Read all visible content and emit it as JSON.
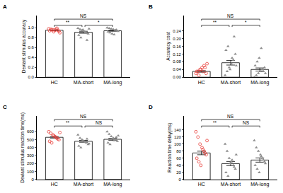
{
  "chart_data": [
    {
      "type": "bar",
      "panel": "A",
      "ylabel": "Deviant stimulus accuracy",
      "categories": [
        "HC",
        "MA-short",
        "MA-long"
      ],
      "values": [
        0.95,
        0.91,
        0.94
      ],
      "errors": [
        0.006,
        0.02,
        0.01
      ],
      "points": [
        [
          0.98,
          0.97,
          0.96,
          0.95,
          0.99,
          0.93,
          0.94,
          0.96,
          0.92,
          0.97,
          0.95,
          0.9
        ],
        [
          0.99,
          0.97,
          0.95,
          0.93,
          0.9,
          0.88,
          0.85,
          0.8,
          0.96,
          0.92,
          0.75,
          0.98
        ],
        [
          1.0,
          0.99,
          0.98,
          0.97,
          0.95,
          0.94,
          0.92,
          0.9,
          0.88,
          0.86,
          0.96,
          0.93
        ]
      ],
      "colors": [
        "#e8413c",
        "#8c8c8c",
        "#8c8c8c"
      ],
      "marker": [
        "circle-open",
        "triangle-up",
        "triangle-up"
      ],
      "ylim": [
        0,
        1.25
      ],
      "yticks": [
        {
          "value": 0,
          "label": "0.0"
        },
        0.2,
        0.4,
        0.6,
        0.8,
        {
          "value": 1,
          "label": "1.0"
        }
      ],
      "comparisons": [
        {
          "pair": [
            0,
            1
          ],
          "label": "**"
        },
        {
          "pair": [
            1,
            2
          ],
          "label": "*"
        },
        {
          "pair": [
            0,
            2
          ],
          "label": "NS"
        }
      ]
    },
    {
      "type": "bar",
      "panel": "B",
      "ylabel": "Accuracy cost",
      "categories": [
        "HC",
        "MA-short",
        "MA-long"
      ],
      "values": [
        0.03,
        0.075,
        0.04
      ],
      "errors": [
        0.004,
        0.012,
        0.008
      ],
      "points": [
        [
          0.02,
          0.03,
          0.04,
          0.05,
          0.06,
          0.02,
          0.03,
          0.01,
          0.04,
          0.03,
          0.05,
          0.07
        ],
        [
          0.01,
          0.03,
          0.05,
          0.07,
          0.09,
          0.12,
          0.14,
          0.16,
          0.04,
          0.1,
          0.21,
          0.06
        ],
        [
          0.0,
          0.01,
          0.02,
          0.03,
          0.04,
          0.05,
          0.06,
          0.08,
          0.1,
          0.15,
          0.03,
          0.02
        ]
      ],
      "colors": [
        "#e8413c",
        "#8c8c8c",
        "#8c8c8c"
      ],
      "marker": [
        "circle-open",
        "triangle-up",
        "triangle-up"
      ],
      "ylim": [
        0,
        0.32
      ],
      "yticks": [
        {
          "value": 0,
          "label": "0.00"
        },
        0.04,
        0.08,
        0.12,
        0.16,
        {
          "value": 0.2,
          "label": "0.20"
        },
        0.24
      ],
      "comparisons": [
        {
          "pair": [
            0,
            1
          ],
          "label": "**"
        },
        {
          "pair": [
            1,
            2
          ],
          "label": "*"
        },
        {
          "pair": [
            0,
            2
          ],
          "label": "NS"
        }
      ]
    },
    {
      "type": "bar",
      "panel": "C",
      "ylabel": "Deviant stimulus reaction time(ms)",
      "categories": [
        "HC",
        "MA-short",
        "MA-long"
      ],
      "values": [
        530,
        480,
        505
      ],
      "errors": [
        10,
        12,
        12
      ],
      "points": [
        [
          600,
          580,
          560,
          540,
          520,
          500,
          480,
          460,
          550,
          530,
          510,
          590
        ],
        [
          560,
          520,
          500,
          480,
          460,
          440,
          420,
          400,
          490,
          470,
          510,
          450
        ],
        [
          600,
          570,
          540,
          520,
          500,
          480,
          460,
          440,
          510,
          490,
          530,
          550
        ]
      ],
      "colors": [
        "#e8413c",
        "#8c8c8c",
        "#8c8c8c"
      ],
      "marker": [
        "circle-open",
        "triangle-up",
        "triangle-up"
      ],
      "ylim": [
        0,
        800
      ],
      "yticks": [
        0,
        100,
        200,
        300,
        400,
        500,
        600
      ],
      "comparisons": [
        {
          "pair": [
            0,
            1
          ],
          "label": "**"
        },
        {
          "pair": [
            1,
            2
          ],
          "label": "NS"
        },
        {
          "pair": [
            0,
            2
          ],
          "label": "NS"
        }
      ]
    },
    {
      "type": "bar",
      "panel": "D",
      "ylabel": "Reaction time delay(ms)",
      "categories": [
        "HC",
        "MA-short",
        "MA-long"
      ],
      "values": [
        75,
        45,
        55
      ],
      "errors": [
        5,
        6,
        6
      ],
      "points": [
        [
          135,
          120,
          100,
          90,
          80,
          70,
          60,
          50,
          40,
          85,
          75,
          110
        ],
        [
          100,
          80,
          60,
          50,
          40,
          30,
          20,
          10,
          45,
          55,
          35,
          70
        ],
        [
          110,
          90,
          80,
          70,
          60,
          50,
          40,
          30,
          20,
          65,
          55,
          45
        ]
      ],
      "colors": [
        "#e8413c",
        "#8c8c8c",
        "#8c8c8c"
      ],
      "marker": [
        "circle-open",
        "triangle-up",
        "triangle-up"
      ],
      "ylim": [
        0,
        180
      ],
      "yticks": [
        0,
        20,
        40,
        60,
        80,
        100,
        120,
        140
      ],
      "comparisons": [
        {
          "pair": [
            0,
            1
          ],
          "label": "**"
        },
        {
          "pair": [
            1,
            2
          ],
          "label": "NS"
        },
        {
          "pair": [
            0,
            2
          ],
          "label": "NS"
        }
      ]
    }
  ]
}
